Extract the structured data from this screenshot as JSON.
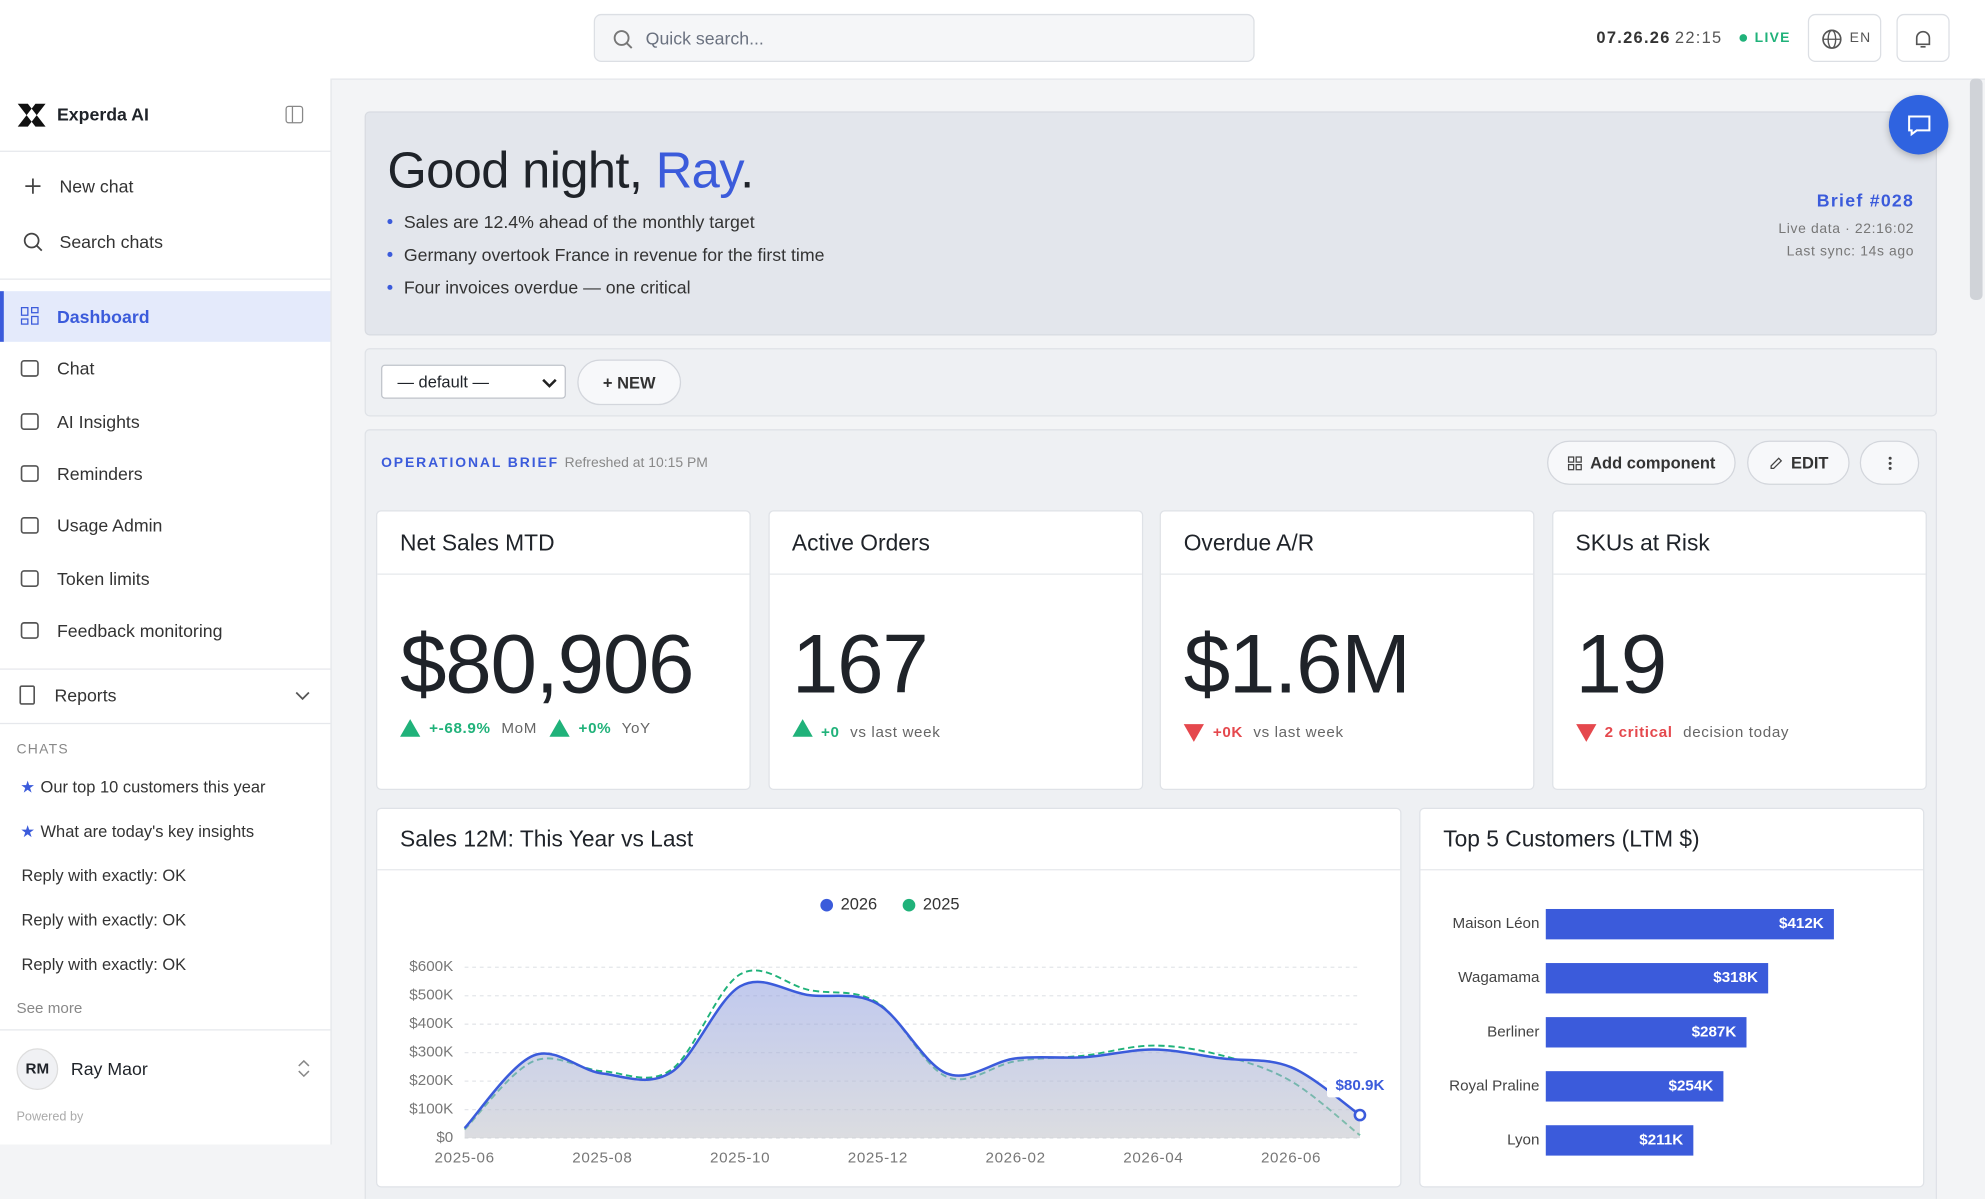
{
  "topbar": {
    "search_placeholder": "Quick search...",
    "date": "07.26.26",
    "time": "22:15",
    "live": "LIVE",
    "language": "EN"
  },
  "sidebar": {
    "brand": "Experda AI",
    "actions": [
      "New chat",
      "Search chats"
    ],
    "nav": [
      "Dashboard",
      "Chat",
      "AI Insights",
      "Reminders",
      "Usage Admin",
      "Token limits",
      "Feedback monitoring"
    ],
    "reports": "Reports",
    "chats_heading": "CHATS",
    "chats": [
      "Our top 10 customers this year",
      "What are today's key insights",
      "Reply with exactly: OK",
      "Reply with exactly: OK",
      "Reply with exactly: OK"
    ],
    "see_more": "See more",
    "user": {
      "initials": "RM",
      "name": "Ray Maor"
    },
    "powered_by": "Powered by"
  },
  "hero": {
    "greeting": "Good night,",
    "name": "Ray",
    "punct": ".",
    "bullets": [
      "Sales are 12.4% ahead of the monthly target",
      "Germany overtook France in revenue for the first time",
      "Four invoices overdue — one critical"
    ],
    "brief": "Brief #028",
    "live_data": "Live data · 22:16:02",
    "last_sync": "Last sync: 14s ago"
  },
  "toolbar": {
    "view": "— default —",
    "new": "+ NEW"
  },
  "brief": {
    "title": "OPERATIONAL BRIEF",
    "refreshed": "Refreshed at 10:15 PM",
    "add": "Add component",
    "edit": "EDIT"
  },
  "kpis": [
    {
      "title": "Net Sales MTD",
      "value": "$80,906",
      "deltas": [
        {
          "value": "+-68.9%",
          "label": "MoM"
        },
        {
          "value": "+0%",
          "label": "YoY"
        }
      ]
    },
    {
      "title": "Active Orders",
      "value": "167",
      "deltas": [
        {
          "value": "+0",
          "label": "vs last week"
        }
      ]
    },
    {
      "title": "Overdue A/R",
      "value": "$1.6M",
      "deltas": [
        {
          "value": "+0K",
          "label": "vs last week"
        }
      ]
    },
    {
      "title": "SKUs at Risk",
      "value": "19",
      "deltas": [
        {
          "value": "2 critical",
          "label": "decision today"
        }
      ]
    }
  ],
  "chart_data": [
    {
      "type": "line",
      "title": "Sales 12M: This Year vs Last",
      "categories": [
        "2025-06",
        null,
        "2025-08",
        null,
        "2025-10",
        null,
        "2025-12",
        null,
        "2026-02",
        null,
        "2026-04",
        null,
        "2026-06",
        null
      ],
      "series": [
        {
          "name": "2026",
          "color": "#3b5bdb",
          "values": [
            35000,
            290000,
            227000,
            231000,
            533000,
            502000,
            471000,
            227000,
            280000,
            284000,
            311000,
            280000,
            249000,
            80900
          ],
          "value_labels": [
            null,
            null,
            null,
            null,
            null,
            null,
            null,
            null,
            null,
            null,
            null,
            null,
            null,
            "$80.9K"
          ]
        },
        {
          "name": "2025",
          "color": "#20b27a",
          "values": [
            30000,
            270000,
            235000,
            240000,
            575000,
            520000,
            475000,
            215000,
            270000,
            290000,
            325000,
            290000,
            200000,
            10000
          ]
        }
      ],
      "ylim": [
        0,
        600000
      ],
      "yticks": [
        {
          "value": 0,
          "label": "$0"
        },
        {
          "value": 100000,
          "label": "$100K"
        },
        {
          "value": 200000,
          "label": "$200K"
        },
        {
          "value": 300000,
          "label": "$300K"
        },
        {
          "value": 400000,
          "label": "$400K"
        },
        {
          "value": 500000,
          "label": "$500K"
        },
        {
          "value": 600000,
          "label": "$600K"
        }
      ],
      "grid": true
    },
    {
      "type": "hbar",
      "title": "Top 5 Customers (LTM $)",
      "categories": [
        "Maison Léon",
        "Wagamama",
        "Berliner",
        "Royal Praline",
        "Lyon"
      ],
      "values": [
        412000,
        318000,
        287000,
        254000,
        211000
      ],
      "value_labels": [
        "$412K",
        "$318K",
        "$287K",
        "$254K",
        "$211K"
      ],
      "color": "#3b5bdb",
      "xlim": [
        0,
        525000
      ]
    }
  ]
}
